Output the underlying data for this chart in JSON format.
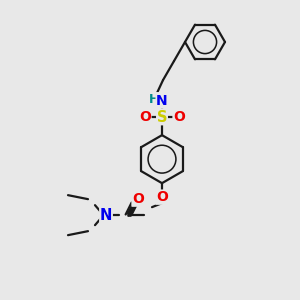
{
  "background_color": "#e8e8e8",
  "bond_color": "#1a1a1a",
  "atom_colors": {
    "N": "#0000ee",
    "O": "#ee0000",
    "S": "#cccc00",
    "H": "#008b8b",
    "C": "#1a1a1a"
  },
  "font_size": 9.5,
  "linewidth": 1.6
}
